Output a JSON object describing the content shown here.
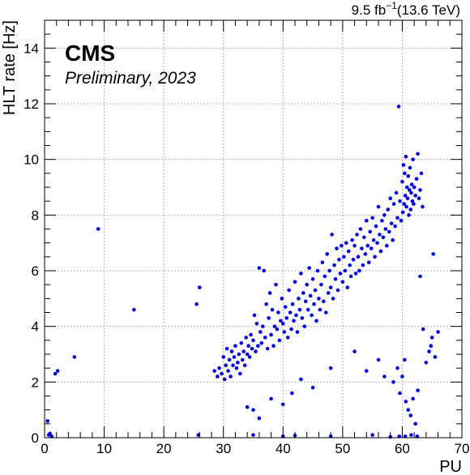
{
  "chart_data": {
    "type": "scatter",
    "experiment": "CMS",
    "subtitle": "Preliminary, 2023",
    "lumi_base": "9.5 fb",
    "lumi_exp": "−1",
    "lumi_energy": "(13.6 TeV)",
    "xlabel": "PU",
    "ylabel": "HLT rate [Hz]",
    "xlim": [
      0,
      70
    ],
    "ylim": [
      0,
      15
    ],
    "xticks": [
      0,
      10,
      20,
      30,
      40,
      50,
      60,
      70
    ],
    "yticks": [
      0,
      2,
      4,
      6,
      8,
      10,
      12,
      14
    ],
    "grid": true,
    "marker_color": "#0000ff",
    "points": [
      [
        0.5,
        0.6
      ],
      [
        0.7,
        0.1
      ],
      [
        0.9,
        0.15
      ],
      [
        1.2,
        0.05
      ],
      [
        1.8,
        2.3
      ],
      [
        2.2,
        2.4
      ],
      [
        5,
        2.9
      ],
      [
        9,
        7.5
      ],
      [
        15,
        4.6
      ],
      [
        25.5,
        4.8
      ],
      [
        26,
        5.4
      ],
      [
        25.8,
        0.1
      ],
      [
        28.5,
        2.4
      ],
      [
        29,
        2.2
      ],
      [
        29.3,
        2.5
      ],
      [
        29.7,
        2.3
      ],
      [
        30,
        2.9
      ],
      [
        30.2,
        2.1
      ],
      [
        30.4,
        2.6
      ],
      [
        30.6,
        3.2
      ],
      [
        30.8,
        2.4
      ],
      [
        31,
        2.8
      ],
      [
        31.2,
        2.2
      ],
      [
        31.4,
        3.1
      ],
      [
        31.6,
        2.6
      ],
      [
        31.8,
        2.9
      ],
      [
        32,
        3.3
      ],
      [
        32.2,
        2.5
      ],
      [
        32.4,
        2.7
      ],
      [
        32.6,
        3.0
      ],
      [
        32.8,
        2.3
      ],
      [
        33,
        3.4
      ],
      [
        33.2,
        2.8
      ],
      [
        33.4,
        3.1
      ],
      [
        33.6,
        2.6
      ],
      [
        33.8,
        3.6
      ],
      [
        34,
        3.0
      ],
      [
        34.2,
        3.3
      ],
      [
        34.4,
        2.9
      ],
      [
        34.6,
        3.7
      ],
      [
        34.8,
        3.2
      ],
      [
        35,
        3.5
      ],
      [
        35.2,
        4.4
      ],
      [
        35.4,
        3.1
      ],
      [
        35.6,
        4.1
      ],
      [
        35.8,
        3.3
      ],
      [
        36,
        6.1
      ],
      [
        36.2,
        3.8
      ],
      [
        36.4,
        3.4
      ],
      [
        36.6,
        4.0
      ],
      [
        36.8,
        6.0
      ],
      [
        37,
        3.6
      ],
      [
        37.2,
        4.8
      ],
      [
        37.4,
        3.2
      ],
      [
        37.6,
        4.3
      ],
      [
        37.8,
        5.2
      ],
      [
        38,
        3.7
      ],
      [
        38.2,
        4.6
      ],
      [
        38.4,
        3.3
      ],
      [
        38.6,
        4.0
      ],
      [
        38.8,
        5.5
      ],
      [
        39,
        3.9
      ],
      [
        39.2,
        4.5
      ],
      [
        39.4,
        3.5
      ],
      [
        39.6,
        4.2
      ],
      [
        39.8,
        5.0
      ],
      [
        40,
        4.1
      ],
      [
        40.2,
        3.8
      ],
      [
        40.4,
        4.7
      ],
      [
        40.6,
        4.3
      ],
      [
        40.8,
        3.6
      ],
      [
        41,
        5.3
      ],
      [
        41.2,
        4.5
      ],
      [
        41.4,
        3.9
      ],
      [
        41.6,
        4.8
      ],
      [
        41.8,
        4.2
      ],
      [
        42,
        5.6
      ],
      [
        42.2,
        4.4
      ],
      [
        42.4,
        3.8
      ],
      [
        42.6,
        5.0
      ],
      [
        42.8,
        4.6
      ],
      [
        43,
        5.9
      ],
      [
        43.2,
        4.3
      ],
      [
        43.4,
        5.2
      ],
      [
        43.6,
        4.0
      ],
      [
        43.8,
        4.9
      ],
      [
        44,
        5.5
      ],
      [
        44.2,
        4.6
      ],
      [
        44.4,
        6.1
      ],
      [
        44.6,
        5.1
      ],
      [
        44.8,
        4.4
      ],
      [
        45,
        5.7
      ],
      [
        45.2,
        4.8
      ],
      [
        45.4,
        5.3
      ],
      [
        45.6,
        4.2
      ],
      [
        45.8,
        6.0
      ],
      [
        46,
        5.0
      ],
      [
        46.2,
        4.6
      ],
      [
        46.4,
        5.5
      ],
      [
        46.6,
        6.3
      ],
      [
        46.8,
        4.9
      ],
      [
        47,
        5.8
      ],
      [
        47.2,
        4.5
      ],
      [
        47.4,
        6.6
      ],
      [
        47.6,
        5.2
      ],
      [
        47.8,
        6.0
      ],
      [
        48,
        5.4
      ],
      [
        48.2,
        7.3
      ],
      [
        48.4,
        5.0
      ],
      [
        48.6,
        6.2
      ],
      [
        48.8,
        5.7
      ],
      [
        49,
        6.8
      ],
      [
        49.2,
        5.3
      ],
      [
        49.4,
        6.4
      ],
      [
        49.6,
        5.9
      ],
      [
        49.8,
        6.9
      ],
      [
        50,
        5.6
      ],
      [
        50.2,
        6.5
      ],
      [
        50.4,
        6.0
      ],
      [
        50.6,
        7.0
      ],
      [
        50.8,
        5.4
      ],
      [
        51,
        6.7
      ],
      [
        51.2,
        6.2
      ],
      [
        51.4,
        5.8
      ],
      [
        51.6,
        7.1
      ],
      [
        51.8,
        6.4
      ],
      [
        52,
        6.9
      ],
      [
        52.2,
        5.9
      ],
      [
        52.4,
        7.3
      ],
      [
        52.6,
        6.5
      ],
      [
        52.8,
        6.0
      ],
      [
        53,
        7.5
      ],
      [
        53.2,
        6.8
      ],
      [
        53.4,
        6.2
      ],
      [
        53.6,
        7.2
      ],
      [
        53.8,
        6.6
      ],
      [
        54,
        7.8
      ],
      [
        54.2,
        6.9
      ],
      [
        54.4,
        6.3
      ],
      [
        54.6,
        7.4
      ],
      [
        54.8,
        6.8
      ],
      [
        55,
        7.9
      ],
      [
        55.2,
        7.1
      ],
      [
        55.4,
        6.5
      ],
      [
        55.6,
        7.6
      ],
      [
        55.8,
        7.0
      ],
      [
        56,
        8.3
      ],
      [
        56.2,
        7.3
      ],
      [
        56.4,
        6.7
      ],
      [
        56.6,
        7.8
      ],
      [
        56.8,
        7.2
      ],
      [
        57,
        8.0
      ],
      [
        57.2,
        7.5
      ],
      [
        57.4,
        6.9
      ],
      [
        57.6,
        8.2
      ],
      [
        57.8,
        7.4
      ],
      [
        58,
        8.6
      ],
      [
        58.2,
        7.7
      ],
      [
        58.4,
        7.1
      ],
      [
        58.6,
        8.4
      ],
      [
        58.8,
        7.6
      ],
      [
        59,
        8.8
      ],
      [
        59.2,
        7.9
      ],
      [
        59.4,
        11.9
      ],
      [
        59.6,
        8.5
      ],
      [
        59.8,
        7.8
      ],
      [
        60,
        9.2
      ],
      [
        60.1,
        8.1
      ],
      [
        60.2,
        9.8
      ],
      [
        60.3,
        8.4
      ],
      [
        60.4,
        9.5
      ],
      [
        60.5,
        8.7
      ],
      [
        60.6,
        10.1
      ],
      [
        60.7,
        8.3
      ],
      [
        60.8,
        9.0
      ],
      [
        60.9,
        8.6
      ],
      [
        61,
        9.4
      ],
      [
        61.1,
        8.0
      ],
      [
        61.2,
        8.9
      ],
      [
        61.3,
        9.7
      ],
      [
        61.4,
        8.2
      ],
      [
        61.5,
        8.8
      ],
      [
        61.6,
        9.1
      ],
      [
        61.7,
        8.5
      ],
      [
        61.8,
        10.0
      ],
      [
        61.9,
        8.4
      ],
      [
        62,
        9.0
      ],
      [
        62.2,
        8.7
      ],
      [
        62.4,
        9.3
      ],
      [
        62.6,
        10.2
      ],
      [
        62.8,
        8.6
      ],
      [
        63,
        8.9
      ],
      [
        63.2,
        9.5
      ],
      [
        63.4,
        8.3
      ],
      [
        34,
        1.1
      ],
      [
        35,
        1.0
      ],
      [
        36,
        0.7
      ],
      [
        38,
        1.4
      ],
      [
        40,
        1.2
      ],
      [
        41.5,
        1.6
      ],
      [
        43,
        2.1
      ],
      [
        45,
        1.8
      ],
      [
        48,
        2.5
      ],
      [
        52,
        3.1
      ],
      [
        54,
        2.4
      ],
      [
        56,
        2.8
      ],
      [
        57,
        2.2
      ],
      [
        58.5,
        2.0
      ],
      [
        59.2,
        2.5
      ],
      [
        59.6,
        1.6
      ],
      [
        60,
        2.2
      ],
      [
        60.4,
        2.8
      ],
      [
        60.6,
        1.3
      ],
      [
        61,
        1.0
      ],
      [
        61.4,
        0.8
      ],
      [
        61.8,
        1.4
      ],
      [
        62.2,
        0.5
      ],
      [
        62.6,
        1.7
      ],
      [
        63.5,
        3.9
      ],
      [
        64,
        2.7
      ],
      [
        64.5,
        3.1
      ],
      [
        65,
        3.6
      ],
      [
        65.5,
        2.9
      ],
      [
        66,
        3.8
      ],
      [
        65.2,
        6.6
      ],
      [
        63,
        5.8
      ],
      [
        64.8,
        3.3
      ],
      [
        35,
        0.1
      ],
      [
        40,
        0.05
      ],
      [
        42,
        0.08
      ],
      [
        48,
        0.05
      ],
      [
        55,
        0.1
      ],
      [
        58,
        0.03
      ],
      [
        59.5,
        0.05
      ],
      [
        60.5,
        0.05
      ],
      [
        61.5,
        0.1
      ],
      [
        62.5,
        0.05
      ]
    ]
  }
}
